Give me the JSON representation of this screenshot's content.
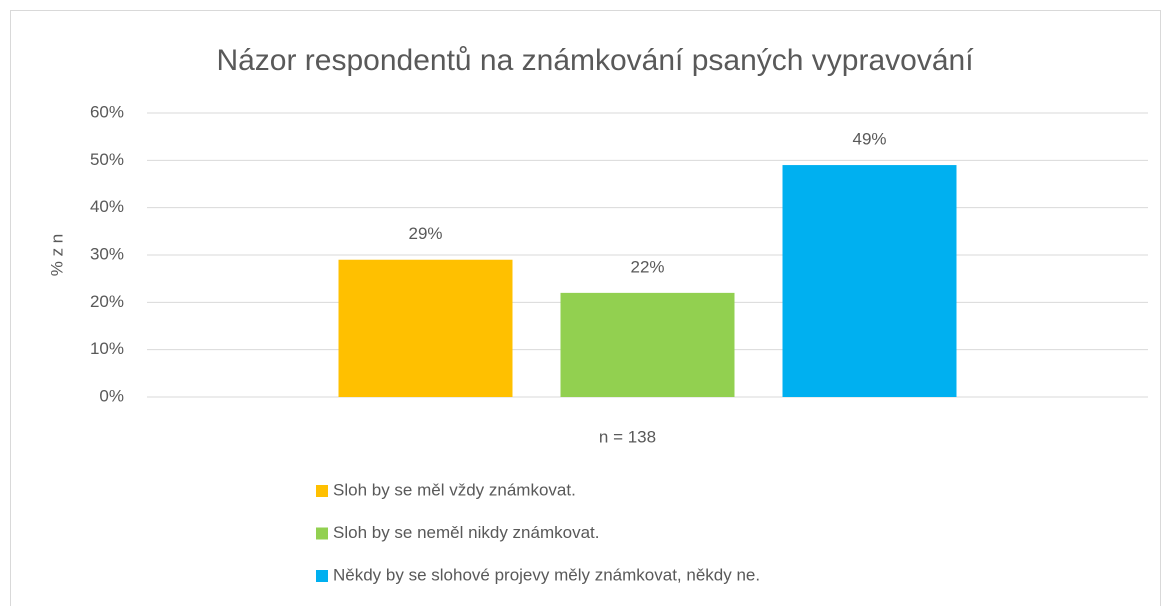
{
  "chart_data": {
    "type": "bar",
    "title": "Názor respondentů na známkování psaných vypravování",
    "y_label": "% z n",
    "categories": [
      "n = 138"
    ],
    "series": [
      {
        "name": "Sloh by se měl vždy známkovat.",
        "color": "#ffc000",
        "values": [
          29
        ],
        "value_labels": [
          "29%"
        ]
      },
      {
        "name": "Sloh by se neměl nikdy známkovat.",
        "color": "#92d050",
        "values": [
          22
        ],
        "value_labels": [
          "22%"
        ]
      },
      {
        "name": "Někdy by se slohové projevy měly známkovat, někdy ne.",
        "color": "#00b0f0",
        "values": [
          49
        ],
        "value_labels": [
          "49%"
        ]
      }
    ],
    "ylim": [
      0,
      60
    ],
    "yticks": [
      {
        "value": 0,
        "label": "0%"
      },
      {
        "value": 10,
        "label": "10%"
      },
      {
        "value": 20,
        "label": "20%"
      },
      {
        "value": 30,
        "label": "30%"
      },
      {
        "value": 40,
        "label": "40%"
      },
      {
        "value": 50,
        "label": "50%"
      },
      {
        "value": 60,
        "label": "60%"
      }
    ],
    "grid": true,
    "legend": "bottom"
  }
}
